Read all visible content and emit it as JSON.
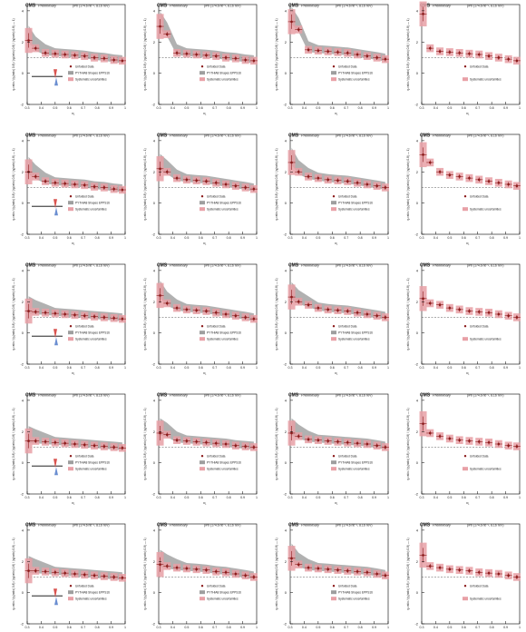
{
  "figure": {
    "cms_label": "CMS",
    "preliminary_label": "Preliminary",
    "energy_label": "pPb (174.6 nb⁻¹, 8.16 TeV)",
    "xlabel": "x₁",
    "ylabel": "ηᵢ ratio / (ηᵢ(ratio) 0.8) / (ηᵢ(ratio) 0.8) / (ηᵢ(ratio) 0.8) — 1)",
    "legend_data": "Unfolded Data",
    "legend_theory": "PYTHIA8 Shapes EPPS16",
    "legend_uncert": "Systematic uncertainties",
    "colors": {
      "data": "#8b1a1a",
      "uncert": "#e8a0a6",
      "theory": "#9e9e9e",
      "ref": "#555555"
    }
  },
  "chart_data": [
    {
      "type": "scatter",
      "row": 0,
      "col": 0,
      "ylim": [
        -2,
        4.4
      ],
      "has_theory": true,
      "has_inset": true,
      "x": [
        0.31,
        0.36,
        0.43,
        0.5,
        0.57,
        0.64,
        0.71,
        0.78,
        0.85,
        0.92,
        0.98
      ],
      "values": [
        2.1,
        1.6,
        1.3,
        1.25,
        1.2,
        1.15,
        1.1,
        1.0,
        0.95,
        0.85,
        0.8
      ]
    },
    {
      "type": "scatter",
      "row": 0,
      "col": 1,
      "ylim": [
        -2,
        4.4
      ],
      "has_theory": true,
      "x": [
        0.31,
        0.36,
        0.43,
        0.5,
        0.57,
        0.64,
        0.71,
        0.78,
        0.85,
        0.92,
        0.98
      ],
      "values": [
        3.0,
        2.5,
        1.3,
        1.25,
        1.2,
        1.15,
        1.1,
        1.0,
        0.95,
        0.85,
        0.8
      ]
    },
    {
      "type": "scatter",
      "row": 0,
      "col": 2,
      "ylim": [
        -2,
        4.4
      ],
      "has_theory": true,
      "x": [
        0.31,
        0.36,
        0.43,
        0.5,
        0.57,
        0.64,
        0.71,
        0.78,
        0.85,
        0.92,
        0.98
      ],
      "values": [
        3.3,
        2.8,
        1.5,
        1.45,
        1.4,
        1.35,
        1.3,
        1.2,
        1.1,
        1.0,
        0.9
      ]
    },
    {
      "type": "scatter",
      "row": 0,
      "col": 3,
      "ylim": [
        -2,
        4.4
      ],
      "has_theory": false,
      "x": [
        0.31,
        0.36,
        0.43,
        0.5,
        0.57,
        0.64,
        0.71,
        0.78,
        0.85,
        0.92,
        0.98
      ],
      "values": [
        3.8,
        1.6,
        1.4,
        1.35,
        1.3,
        1.25,
        1.2,
        1.1,
        1.0,
        0.9,
        0.8
      ]
    },
    {
      "type": "scatter",
      "row": 1,
      "col": 0,
      "ylim": [
        -2,
        4.4
      ],
      "has_theory": true,
      "has_inset": true,
      "x": [
        0.31,
        0.36,
        0.43,
        0.5,
        0.57,
        0.64,
        0.71,
        0.78,
        0.85,
        0.92,
        0.98
      ],
      "values": [
        2.0,
        1.7,
        1.4,
        1.3,
        1.25,
        1.2,
        1.15,
        1.05,
        1.0,
        0.9,
        0.85
      ]
    },
    {
      "type": "scatter",
      "row": 1,
      "col": 1,
      "ylim": [
        -2,
        4.4
      ],
      "has_theory": true,
      "x": [
        0.31,
        0.36,
        0.43,
        0.5,
        0.57,
        0.64,
        0.71,
        0.78,
        0.85,
        0.92,
        0.98
      ],
      "values": [
        2.2,
        2.0,
        1.6,
        1.5,
        1.45,
        1.4,
        1.3,
        1.2,
        1.1,
        1.0,
        0.9
      ]
    },
    {
      "type": "scatter",
      "row": 1,
      "col": 2,
      "ylim": [
        -2,
        4.4
      ],
      "has_theory": true,
      "x": [
        0.31,
        0.36,
        0.43,
        0.5,
        0.57,
        0.64,
        0.71,
        0.78,
        0.85,
        0.92,
        0.98
      ],
      "values": [
        2.6,
        2.0,
        1.7,
        1.6,
        1.5,
        1.45,
        1.4,
        1.3,
        1.2,
        1.1,
        1.0
      ]
    },
    {
      "type": "scatter",
      "row": 1,
      "col": 3,
      "ylim": [
        -2,
        4.4
      ],
      "has_theory": false,
      "x": [
        0.31,
        0.36,
        0.43,
        0.5,
        0.57,
        0.64,
        0.71,
        0.78,
        0.85,
        0.92,
        0.98
      ],
      "values": [
        3.1,
        2.6,
        2.0,
        1.8,
        1.7,
        1.6,
        1.5,
        1.4,
        1.3,
        1.2,
        1.1
      ]
    },
    {
      "type": "scatter",
      "row": 2,
      "col": 0,
      "ylim": [
        -2,
        4.4
      ],
      "has_theory": true,
      "has_inset": true,
      "x": [
        0.31,
        0.36,
        0.43,
        0.5,
        0.57,
        0.64,
        0.71,
        0.78,
        0.85,
        0.92,
        0.98
      ],
      "values": [
        1.4,
        1.35,
        1.3,
        1.25,
        1.2,
        1.15,
        1.1,
        1.05,
        1.0,
        0.95,
        0.9
      ]
    },
    {
      "type": "scatter",
      "row": 2,
      "col": 1,
      "ylim": [
        -2,
        4.4
      ],
      "has_theory": true,
      "x": [
        0.31,
        0.36,
        0.43,
        0.5,
        0.57,
        0.64,
        0.71,
        0.78,
        0.85,
        0.92,
        0.98
      ],
      "values": [
        2.4,
        1.9,
        1.6,
        1.5,
        1.45,
        1.4,
        1.3,
        1.2,
        1.1,
        1.0,
        0.9
      ]
    },
    {
      "type": "scatter",
      "row": 2,
      "col": 2,
      "ylim": [
        -2,
        4.4
      ],
      "has_theory": true,
      "x": [
        0.31,
        0.36,
        0.43,
        0.5,
        0.57,
        0.64,
        0.71,
        0.78,
        0.85,
        0.92,
        0.98
      ],
      "values": [
        2.3,
        2.0,
        1.8,
        1.6,
        1.5,
        1.45,
        1.4,
        1.3,
        1.2,
        1.1,
        1.0
      ]
    },
    {
      "type": "scatter",
      "row": 2,
      "col": 3,
      "ylim": [
        -2,
        4.4
      ],
      "has_theory": false,
      "x": [
        0.31,
        0.36,
        0.43,
        0.5,
        0.57,
        0.64,
        0.71,
        0.78,
        0.85,
        0.92,
        0.98
      ],
      "values": [
        2.2,
        1.9,
        1.8,
        1.6,
        1.5,
        1.4,
        1.35,
        1.3,
        1.2,
        1.1,
        1.0
      ]
    },
    {
      "type": "scatter",
      "row": 3,
      "col": 0,
      "ylim": [
        -2,
        4.4
      ],
      "has_theory": true,
      "has_inset": true,
      "x": [
        0.31,
        0.36,
        0.43,
        0.5,
        0.57,
        0.64,
        0.71,
        0.78,
        0.85,
        0.92,
        0.98
      ],
      "values": [
        1.4,
        1.4,
        1.35,
        1.3,
        1.25,
        1.2,
        1.15,
        1.1,
        1.05,
        1.0,
        0.95
      ]
    },
    {
      "type": "scatter",
      "row": 3,
      "col": 1,
      "ylim": [
        -2,
        4.4
      ],
      "has_theory": true,
      "x": [
        0.31,
        0.36,
        0.43,
        0.5,
        0.57,
        0.64,
        0.71,
        0.78,
        0.85,
        0.92,
        0.98
      ],
      "values": [
        1.9,
        1.8,
        1.45,
        1.4,
        1.35,
        1.3,
        1.25,
        1.2,
        1.1,
        1.05,
        1.0
      ]
    },
    {
      "type": "scatter",
      "row": 3,
      "col": 2,
      "ylim": [
        -2,
        4.4
      ],
      "has_theory": true,
      "x": [
        0.31,
        0.36,
        0.43,
        0.5,
        0.57,
        0.64,
        0.71,
        0.78,
        0.85,
        0.92,
        0.98
      ],
      "values": [
        1.9,
        1.7,
        1.5,
        1.45,
        1.4,
        1.35,
        1.3,
        1.25,
        1.2,
        1.1,
        1.0
      ]
    },
    {
      "type": "scatter",
      "row": 3,
      "col": 3,
      "ylim": [
        -2,
        4.4
      ],
      "has_theory": false,
      "x": [
        0.31,
        0.36,
        0.43,
        0.5,
        0.57,
        0.64,
        0.71,
        0.78,
        0.85,
        0.92,
        0.98
      ],
      "values": [
        2.5,
        1.9,
        1.7,
        1.55,
        1.45,
        1.4,
        1.35,
        1.3,
        1.2,
        1.1,
        1.05
      ]
    },
    {
      "type": "scatter",
      "row": 4,
      "col": 0,
      "ylim": [
        -2,
        4.4
      ],
      "has_theory": true,
      "has_inset": true,
      "x": [
        0.31,
        0.36,
        0.43,
        0.5,
        0.57,
        0.64,
        0.71,
        0.78,
        0.85,
        0.92,
        0.98
      ],
      "values": [
        1.4,
        1.4,
        1.35,
        1.3,
        1.25,
        1.2,
        1.15,
        1.1,
        1.05,
        1.0,
        0.95
      ]
    },
    {
      "type": "scatter",
      "row": 4,
      "col": 1,
      "ylim": [
        -2,
        4.4
      ],
      "has_theory": true,
      "x": [
        0.31,
        0.36,
        0.43,
        0.5,
        0.57,
        0.64,
        0.71,
        0.78,
        0.85,
        0.92,
        0.98
      ],
      "values": [
        1.8,
        1.7,
        1.6,
        1.55,
        1.5,
        1.45,
        1.35,
        1.3,
        1.2,
        1.1,
        1.0
      ]
    },
    {
      "type": "scatter",
      "row": 4,
      "col": 2,
      "ylim": [
        -2,
        4.4
      ],
      "has_theory": true,
      "x": [
        0.31,
        0.36,
        0.43,
        0.5,
        0.57,
        0.64,
        0.71,
        0.78,
        0.85,
        0.92,
        0.98
      ],
      "values": [
        2.2,
        1.8,
        1.6,
        1.55,
        1.5,
        1.45,
        1.4,
        1.35,
        1.3,
        1.2,
        1.1
      ]
    },
    {
      "type": "scatter",
      "row": 4,
      "col": 3,
      "ylim": [
        -2,
        4.4
      ],
      "has_theory": false,
      "x": [
        0.31,
        0.36,
        0.43,
        0.5,
        0.57,
        0.64,
        0.71,
        0.78,
        0.85,
        0.92,
        0.98
      ],
      "values": [
        2.4,
        1.7,
        1.6,
        1.5,
        1.45,
        1.4,
        1.3,
        1.25,
        1.2,
        1.1,
        1.0
      ]
    }
  ]
}
